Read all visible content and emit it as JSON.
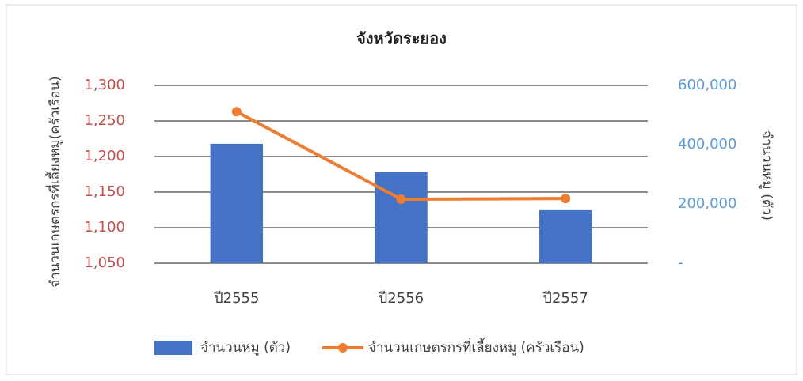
{
  "chart_data": {
    "type": "bar-line",
    "title": "จังหวัดระยอง",
    "ylabel": "จำนวนเกษตรกรที่เลี้ยงหมู(ครัวเรือน)",
    "y2label": "จำนวนหมู (ตัว)",
    "categories": [
      "ปี2555",
      "ปี2556",
      "ปี2557"
    ],
    "series": [
      {
        "name": "จำนวนหมู (ตัว)",
        "type": "bar",
        "color": "#4472c4",
        "axis": "y2",
        "values": [
          403000,
          307000,
          179000
        ]
      },
      {
        "name": "จำนวนเกษตรกรที่เลี้ยงหมู (ครัวเรือน)",
        "type": "line",
        "color": "#ed7d31",
        "axis": "y",
        "values": [
          1263,
          1140,
          1141
        ]
      }
    ],
    "ylim": [
      1050,
      1300
    ],
    "yticks": [
      {
        "value": 1050,
        "label": "1,050"
      },
      {
        "value": 1100,
        "label": "1,100"
      },
      {
        "value": 1150,
        "label": "1,150"
      },
      {
        "value": 1200,
        "label": "1,200"
      },
      {
        "value": 1250,
        "label": "1,250"
      },
      {
        "value": 1300,
        "label": "1,300"
      }
    ],
    "y2lim": [
      0,
      600000
    ],
    "y2ticks": [
      {
        "value": 0,
        "label": "-"
      },
      {
        "value": 200000,
        "label": "200,000"
      },
      {
        "value": 400000,
        "label": "400,000"
      },
      {
        "value": 600000,
        "label": "600,000"
      }
    ],
    "grid": true,
    "legend": "bottom"
  }
}
